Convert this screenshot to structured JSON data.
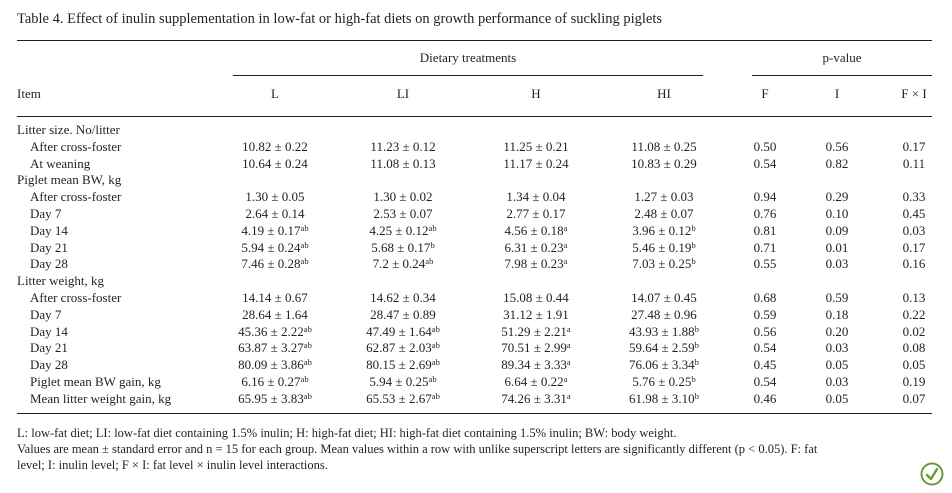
{
  "caption": "Table 4.  Effect of inulin supplementation in low-fat or high-fat diets on growth performance of suckling piglets",
  "headers": {
    "group_treatments": "Dietary treatments",
    "group_pvalue": "p-value",
    "item": "Item",
    "columns": [
      "L",
      "LI",
      "H",
      "HI",
      "F",
      "I",
      "F × I"
    ]
  },
  "rows": [
    {
      "label": "Litter size. No/litter",
      "indent": false,
      "cells": []
    },
    {
      "label": "After cross-foster",
      "indent": true,
      "cells": [
        {
          "v": "10.82 ± 0.22",
          "s": ""
        },
        {
          "v": "11.23 ± 0.12",
          "s": ""
        },
        {
          "v": "11.25 ± 0.21",
          "s": ""
        },
        {
          "v": "11.08 ± 0.25",
          "s": ""
        },
        {
          "v": "0.50",
          "s": ""
        },
        {
          "v": "0.56",
          "s": ""
        },
        {
          "v": "0.17",
          "s": ""
        }
      ]
    },
    {
      "label": "At weaning",
      "indent": true,
      "cells": [
        {
          "v": "10.64 ± 0.24",
          "s": ""
        },
        {
          "v": "11.08 ± 0.13",
          "s": ""
        },
        {
          "v": "11.17 ± 0.24",
          "s": ""
        },
        {
          "v": "10.83 ± 0.29",
          "s": ""
        },
        {
          "v": "0.54",
          "s": ""
        },
        {
          "v": "0.82",
          "s": ""
        },
        {
          "v": "0.11",
          "s": ""
        }
      ]
    },
    {
      "label": "Piglet mean BW, kg",
      "indent": false,
      "cells": []
    },
    {
      "label": "After cross-foster",
      "indent": true,
      "cells": [
        {
          "v": "1.30 ± 0.05",
          "s": ""
        },
        {
          "v": "1.30 ± 0.02",
          "s": ""
        },
        {
          "v": "1.34 ± 0.04",
          "s": ""
        },
        {
          "v": "1.27 ± 0.03",
          "s": ""
        },
        {
          "v": "0.94",
          "s": ""
        },
        {
          "v": "0.29",
          "s": ""
        },
        {
          "v": "0.33",
          "s": ""
        }
      ]
    },
    {
      "label": "Day 7",
      "indent": true,
      "cells": [
        {
          "v": "2.64 ± 0.14",
          "s": ""
        },
        {
          "v": "2.53 ± 0.07",
          "s": ""
        },
        {
          "v": "2.77 ± 0.17",
          "s": ""
        },
        {
          "v": "2.48 ± 0.07",
          "s": ""
        },
        {
          "v": "0.76",
          "s": ""
        },
        {
          "v": "0.10",
          "s": ""
        },
        {
          "v": "0.45",
          "s": ""
        }
      ]
    },
    {
      "label": "Day 14",
      "indent": true,
      "cells": [
        {
          "v": "4.19 ± 0.17",
          "s": "ab"
        },
        {
          "v": "4.25 ± 0.12",
          "s": "ab"
        },
        {
          "v": "4.56 ± 0.18",
          "s": "a"
        },
        {
          "v": "3.96 ± 0.12",
          "s": "b"
        },
        {
          "v": "0.81",
          "s": ""
        },
        {
          "v": "0.09",
          "s": ""
        },
        {
          "v": "0.03",
          "s": ""
        }
      ]
    },
    {
      "label": "Day 21",
      "indent": true,
      "cells": [
        {
          "v": "5.94 ± 0.24",
          "s": "ab"
        },
        {
          "v": "5.68 ± 0.17",
          "s": "b"
        },
        {
          "v": "6.31 ± 0.23",
          "s": "a"
        },
        {
          "v": "5.46 ± 0.19",
          "s": "b"
        },
        {
          "v": "0.71",
          "s": ""
        },
        {
          "v": "0.01",
          "s": ""
        },
        {
          "v": "0.17",
          "s": ""
        }
      ]
    },
    {
      "label": "Day 28",
      "indent": true,
      "cells": [
        {
          "v": "7.46 ± 0.28",
          "s": "ab"
        },
        {
          "v": "7.2 ± 0.24",
          "s": "ab"
        },
        {
          "v": "7.98 ± 0.23",
          "s": "a"
        },
        {
          "v": "7.03 ± 0.25",
          "s": "b"
        },
        {
          "v": "0.55",
          "s": ""
        },
        {
          "v": "0.03",
          "s": ""
        },
        {
          "v": "0.16",
          "s": ""
        }
      ]
    },
    {
      "label": "Litter weight, kg",
      "indent": false,
      "cells": []
    },
    {
      "label": "After cross-foster",
      "indent": true,
      "cells": [
        {
          "v": "14.14 ± 0.67",
          "s": ""
        },
        {
          "v": "14.62 ± 0.34",
          "s": ""
        },
        {
          "v": "15.08 ± 0.44",
          "s": ""
        },
        {
          "v": "14.07 ± 0.45",
          "s": ""
        },
        {
          "v": "0.68",
          "s": ""
        },
        {
          "v": "0.59",
          "s": ""
        },
        {
          "v": "0.13",
          "s": ""
        }
      ]
    },
    {
      "label": "Day 7",
      "indent": true,
      "cells": [
        {
          "v": "28.64 ± 1.64",
          "s": ""
        },
        {
          "v": "28.47 ± 0.89",
          "s": ""
        },
        {
          "v": "31.12 ± 1.91",
          "s": ""
        },
        {
          "v": "27.48 ± 0.96",
          "s": ""
        },
        {
          "v": "0.59",
          "s": ""
        },
        {
          "v": "0.18",
          "s": ""
        },
        {
          "v": "0.22",
          "s": ""
        }
      ]
    },
    {
      "label": "Day 14",
      "indent": true,
      "cells": [
        {
          "v": "45.36 ± 2.22",
          "s": "ab"
        },
        {
          "v": "47.49 ± 1.64",
          "s": "ab"
        },
        {
          "v": "51.29 ± 2.21",
          "s": "a"
        },
        {
          "v": "43.93 ± 1.88",
          "s": "b"
        },
        {
          "v": "0.56",
          "s": ""
        },
        {
          "v": "0.20",
          "s": ""
        },
        {
          "v": "0.02",
          "s": ""
        }
      ]
    },
    {
      "label": "Day 21",
      "indent": true,
      "cells": [
        {
          "v": "63.87 ± 3.27",
          "s": "ab"
        },
        {
          "v": "62.87 ± 2.03",
          "s": "ab"
        },
        {
          "v": "70.51 ± 2.99",
          "s": "a"
        },
        {
          "v": "59.64 ± 2.59",
          "s": "b"
        },
        {
          "v": "0.54",
          "s": ""
        },
        {
          "v": "0.03",
          "s": ""
        },
        {
          "v": "0.08",
          "s": ""
        }
      ]
    },
    {
      "label": "Day 28",
      "indent": true,
      "cells": [
        {
          "v": "80.09 ± 3.86",
          "s": "ab"
        },
        {
          "v": "80.15 ± 2.69",
          "s": "ab"
        },
        {
          "v": "89.34 ± 3.33",
          "s": "a"
        },
        {
          "v": "76.06 ± 3.34",
          "s": "b"
        },
        {
          "v": "0.45",
          "s": ""
        },
        {
          "v": "0.05",
          "s": ""
        },
        {
          "v": "0.05",
          "s": ""
        }
      ]
    },
    {
      "label": "Piglet mean BW gain, kg",
      "indent": true,
      "cells": [
        {
          "v": "6.16 ± 0.27",
          "s": "ab"
        },
        {
          "v": "5.94 ± 0.25",
          "s": "ab"
        },
        {
          "v": "6.64 ± 0.22",
          "s": "a"
        },
        {
          "v": "5.76 ± 0.25",
          "s": "b"
        },
        {
          "v": "0.54",
          "s": ""
        },
        {
          "v": "0.03",
          "s": ""
        },
        {
          "v": "0.19",
          "s": ""
        }
      ]
    },
    {
      "label": "Mean litter weight gain, kg",
      "indent": true,
      "cells": [
        {
          "v": "65.95 ± 3.83",
          "s": "ab"
        },
        {
          "v": "65.53 ± 2.67",
          "s": "ab"
        },
        {
          "v": "74.26 ± 3.31",
          "s": "a"
        },
        {
          "v": "61.98 ± 3.10",
          "s": "b"
        },
        {
          "v": "0.46",
          "s": ""
        },
        {
          "v": "0.05",
          "s": ""
        },
        {
          "v": "0.07",
          "s": ""
        }
      ]
    }
  ],
  "footnotes": [
    "L: low-fat diet; LI: low-fat diet containing 1.5% inulin; H: high-fat diet; HI: high-fat diet containing 1.5% inulin; BW: body weight.",
    "Values are mean ± standard error and n = 15 for each group. Mean values within a row with unlike superscript letters are significantly different (p < 0.05). F: fat",
    "level; I: inulin level; F × I: fat level × inulin level interactions."
  ],
  "logo_icon": "publisher-logo-icon",
  "colors": {
    "text": "#231f20",
    "logo": "#6a9a3a"
  }
}
